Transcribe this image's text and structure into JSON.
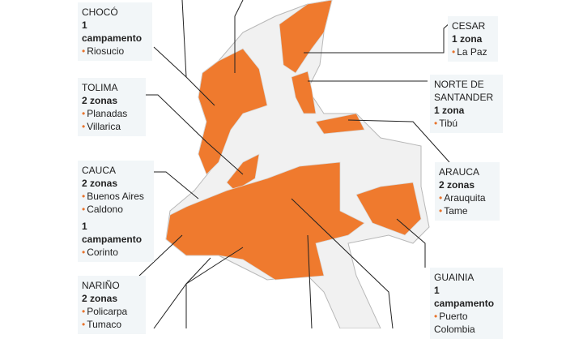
{
  "colors": {
    "highlight": "#ef7a2e",
    "region": "#f1f1f1",
    "border": "#b8b8b8",
    "bullet": "#e8742d"
  },
  "labels": {
    "choco": {
      "dept": "CHOCÓ",
      "count": "1 campamento",
      "items": [
        "Riosucio"
      ]
    },
    "tolima": {
      "dept": "TOLIMA",
      "count": "2 zonas",
      "items": [
        "Planadas",
        "Villarica"
      ]
    },
    "cauca": {
      "dept": "CAUCA",
      "count": "2 zonas",
      "items": [
        "Buenos Aires",
        "Caldono"
      ],
      "count2": "1 campamento",
      "items2": [
        "Corinto"
      ]
    },
    "narino": {
      "dept": "NARIÑO",
      "count": "2 zonas",
      "items": [
        "Policarpa",
        "Tumaco"
      ]
    },
    "cesar": {
      "dept": "CESAR",
      "count": "1 zona",
      "items": [
        "La Paz"
      ]
    },
    "norte": {
      "dept": "NORTE DE SANTANDER",
      "count": "1 zona",
      "items": [
        "Tibú"
      ]
    },
    "arauca": {
      "dept": "ARAUCA",
      "count": "2 zonas",
      "items": [
        "Arauquita",
        "Tame"
      ]
    },
    "guainia": {
      "dept": "GUAINIA",
      "count": "1 campamento",
      "items": [
        "Puerto Colombia"
      ]
    }
  }
}
